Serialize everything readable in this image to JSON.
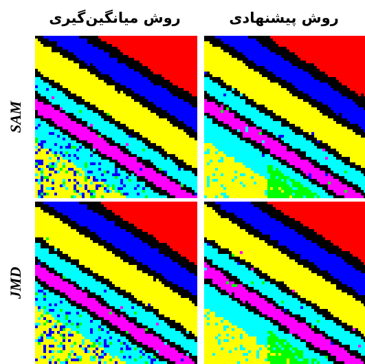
{
  "columns": [
    {
      "label": "روش میانگین‌گیری"
    },
    {
      "label": "روش پیشنهادی"
    }
  ],
  "rows": [
    {
      "label": "SAM"
    },
    {
      "label": "JMD"
    }
  ],
  "palette": {
    "red": "#ff0000",
    "black": "#000000",
    "blue": "#0000ff",
    "yellow": "#ffff00",
    "cyan": "#00ffff",
    "magenta": "#ff00ff",
    "green": "#00ff00"
  }
}
